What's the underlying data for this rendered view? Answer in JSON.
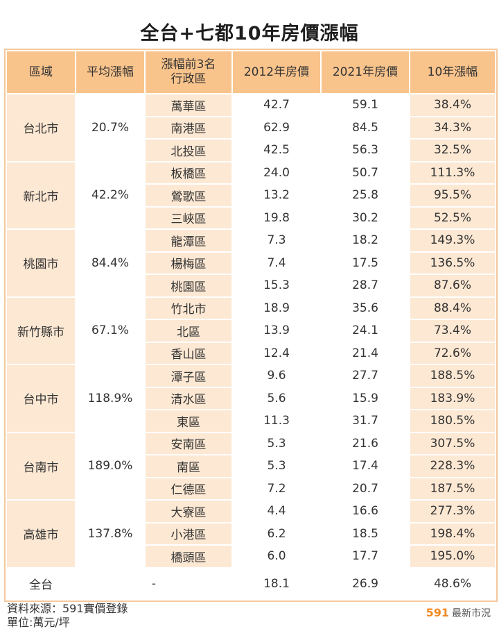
{
  "title": "全台+七都10年房價漲幅",
  "headers": [
    "區域",
    "平均漲幅",
    "漲幅前3名\n行政區",
    "2012年房價",
    "2021年房價",
    "10年漲幅"
  ],
  "groups": [
    {
      "city": "台北市",
      "avg": "20.7%",
      "rows": [
        {
          "district": "萬華區",
          "p2012": "42.7",
          "p2021": "59.1",
          "rate": "38.4%"
        },
        {
          "district": "南港區",
          "p2012": "62.9",
          "p2021": "84.5",
          "rate": "34.3%"
        },
        {
          "district": "北投區",
          "p2012": "42.5",
          "p2021": "56.3",
          "rate": "32.5%"
        }
      ]
    },
    {
      "city": "新北市",
      "avg": "42.2%",
      "rows": [
        {
          "district": "板橋區",
          "p2012": "24.0",
          "p2021": "50.7",
          "rate": "111.3%"
        },
        {
          "district": "鶯歌區",
          "p2012": "13.2",
          "p2021": "25.8",
          "rate": "95.5%"
        },
        {
          "district": "三峽區",
          "p2012": "19.8",
          "p2021": "30.2",
          "rate": "52.5%"
        }
      ]
    },
    {
      "city": "桃園市",
      "avg": "84.4%",
      "rows": [
        {
          "district": "龍潭區",
          "p2012": "7.3",
          "p2021": "18.2",
          "rate": "149.3%"
        },
        {
          "district": "楊梅區",
          "p2012": "7.4",
          "p2021": "17.5",
          "rate": "136.5%"
        },
        {
          "district": "桃園區",
          "p2012": "15.3",
          "p2021": "28.7",
          "rate": "87.6%"
        }
      ]
    },
    {
      "city": "新竹縣市",
      "avg": "67.1%",
      "rows": [
        {
          "district": "竹北市",
          "p2012": "18.9",
          "p2021": "35.6",
          "rate": "88.4%"
        },
        {
          "district": "北區",
          "p2012": "13.9",
          "p2021": "24.1",
          "rate": "73.4%"
        },
        {
          "district": "香山區",
          "p2012": "12.4",
          "p2021": "21.4",
          "rate": "72.6%"
        }
      ]
    },
    {
      "city": "台中市",
      "avg": "118.9%",
      "rows": [
        {
          "district": "潭子區",
          "p2012": "9.6",
          "p2021": "27.7",
          "rate": "188.5%"
        },
        {
          "district": "清水區",
          "p2012": "5.6",
          "p2021": "15.9",
          "rate": "183.9%"
        },
        {
          "district": "東區",
          "p2012": "11.3",
          "p2021": "31.7",
          "rate": "180.5%"
        }
      ]
    },
    {
      "city": "台南市",
      "avg": "189.0%",
      "rows": [
        {
          "district": "安南區",
          "p2012": "5.3",
          "p2021": "21.6",
          "rate": "307.5%"
        },
        {
          "district": "南區",
          "p2012": "5.3",
          "p2021": "17.4",
          "rate": "228.3%"
        },
        {
          "district": "仁德區",
          "p2012": "7.2",
          "p2021": "20.7",
          "rate": "187.5%"
        }
      ]
    },
    {
      "city": "高雄市",
      "avg": "137.8%",
      "rows": [
        {
          "district": "大寮區",
          "p2012": "4.4",
          "p2021": "16.6",
          "rate": "277.3%"
        },
        {
          "district": "小港區",
          "p2012": "6.2",
          "p2021": "18.5",
          "rate": "198.4%"
        },
        {
          "district": "橋頭區",
          "p2012": "6.0",
          "p2021": "17.7",
          "rate": "195.0%"
        }
      ]
    }
  ],
  "total": {
    "city": "全台",
    "avg": "-",
    "p2012": "18.1",
    "p2021": "26.9",
    "rate": "48.6%"
  },
  "footer": {
    "source": "資料來源：591實價登錄",
    "unit": "單位:萬元/坪",
    "brand_num": "591",
    "brand_text": "最新市況"
  },
  "colors": {
    "header_bg": "#f9c48c",
    "light_bg": "#fde8d3",
    "brand": "#f08a24"
  }
}
